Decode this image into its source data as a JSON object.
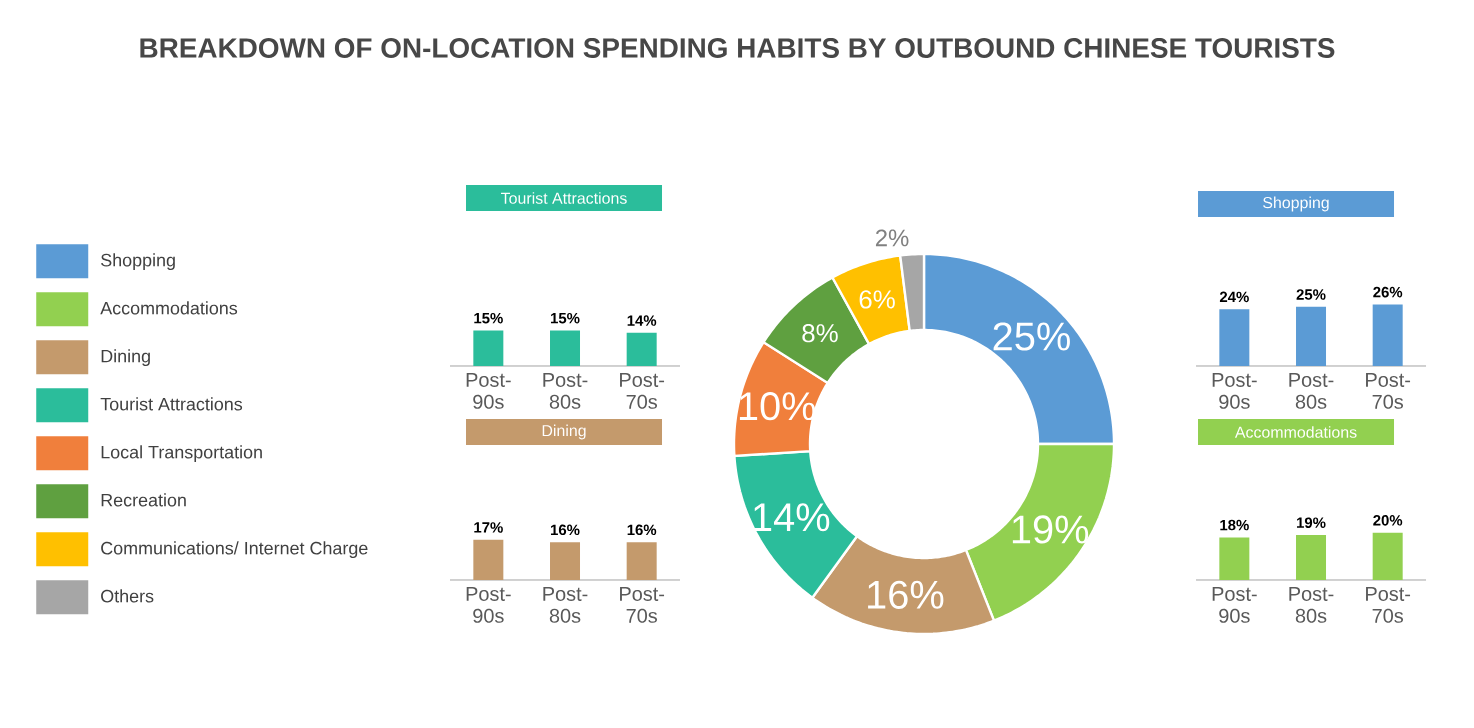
{
  "chart_data": [
    {
      "type": "donut",
      "title": "BREAKDOWN OF ON-LOCATION SPENDING HABITS BY OUTBOUND CHINESE TOURISTS",
      "categories": [
        "Shopping",
        "Accommodations",
        "Dining",
        "Tourist Attractions",
        "Local Transportation",
        "Recreation",
        "Communications/ Internet Charge",
        "Others"
      ],
      "values": [
        25,
        19,
        16,
        14,
        10,
        8,
        6,
        2
      ],
      "value_labels": [
        "25%",
        "19%",
        "16%",
        "14%",
        "10%",
        "8%",
        "6%",
        "2%"
      ],
      "colors": [
        "#5b9bd5",
        "#92d050",
        "#c49a6c",
        "#2bbd9b",
        "#f07f3c",
        "#5fa040",
        "#ffc000",
        "#a6a6a6"
      ],
      "legend": "left"
    },
    {
      "type": "bar",
      "title": "Tourist Attractions",
      "categories": [
        "Post-90s",
        "Post-80s",
        "Post-70s"
      ],
      "values": [
        15,
        15,
        14
      ],
      "value_labels": [
        "15%",
        "15%",
        "14%"
      ],
      "color": "#2bbd9b"
    },
    {
      "type": "bar",
      "title": "Dining",
      "categories": [
        "Post-90s",
        "Post-80s",
        "Post-70s"
      ],
      "values": [
        17,
        16,
        16
      ],
      "value_labels": [
        "17%",
        "16%",
        "16%"
      ],
      "color": "#c49a6c"
    },
    {
      "type": "bar",
      "title": "Shopping",
      "categories": [
        "Post-90s",
        "Post-80s",
        "Post-70s"
      ],
      "values": [
        24,
        25,
        26
      ],
      "value_labels": [
        "24%",
        "25%",
        "26%"
      ],
      "color": "#5b9bd5"
    },
    {
      "type": "bar",
      "title": "Accommodations",
      "categories": [
        "Post-90s",
        "Post-80s",
        "Post-70s"
      ],
      "values": [
        18,
        19,
        20
      ],
      "value_labels": [
        "18%",
        "19%",
        "20%"
      ],
      "color": "#92d050"
    }
  ]
}
